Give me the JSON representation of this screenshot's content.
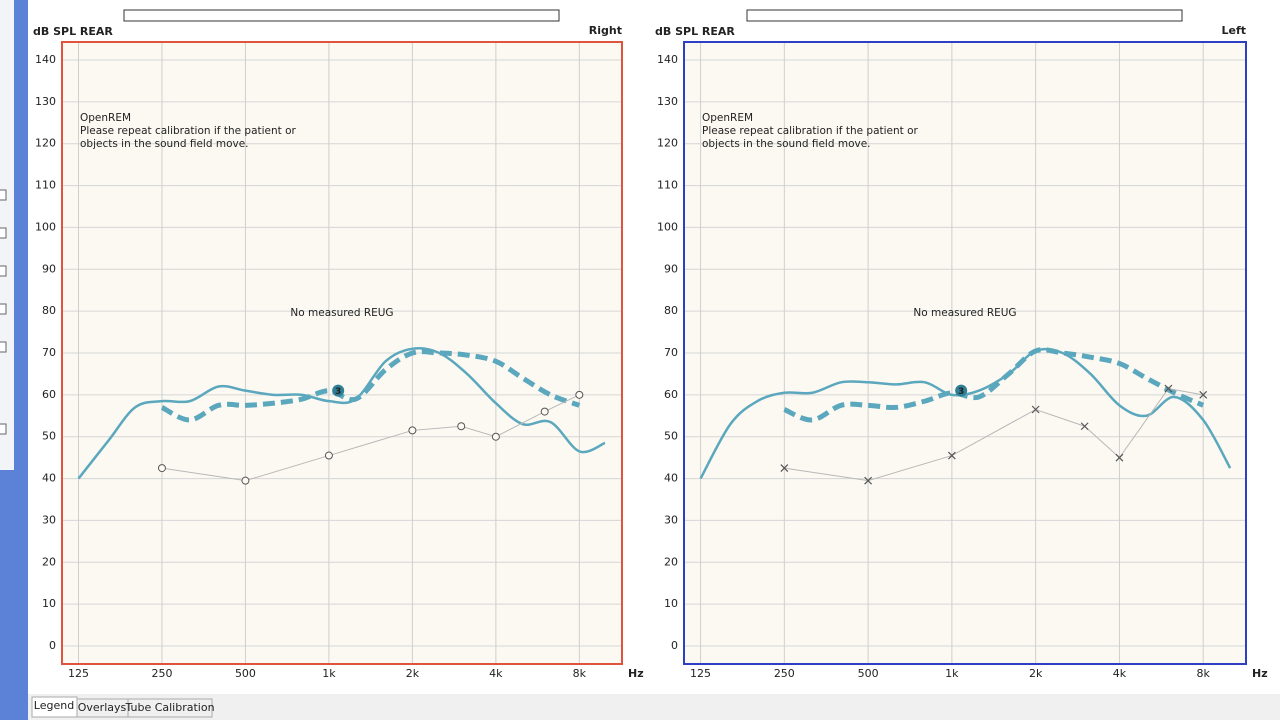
{
  "chart_data": [
    {
      "type": "line",
      "y_label": "dB SPL REAR",
      "side_label": "Right",
      "x_unit": "Hz",
      "frame_color": "#e0533d",
      "log_x": true,
      "grid": true,
      "xlim": [
        109,
        11400
      ],
      "ylim": [
        -4.3,
        144.3
      ],
      "xticks": [
        125,
        250,
        500,
        {
          "value": 1000,
          "label": "1k"
        },
        {
          "value": 2000,
          "label": "2k"
        },
        {
          "value": 4000,
          "label": "4k"
        },
        {
          "value": 8000,
          "label": "8k"
        }
      ],
      "yticks": [
        0,
        10,
        20,
        30,
        40,
        50,
        60,
        70,
        80,
        90,
        100,
        110,
        120,
        130,
        140
      ],
      "notes": [
        "OpenREM",
        "Please repeat calibration if the patient or",
        "objects in the sound field move."
      ],
      "center_note": "No measured REUG",
      "series": [
        {
          "color": "#5ba7bd",
          "style": "solid",
          "x": [
            125,
            160,
            200,
            250,
            315,
            400,
            500,
            630,
            800,
            1000,
            1250,
            1600,
            2000,
            2500,
            3150,
            4000,
            5000,
            6300,
            8000,
            9900
          ],
          "values": [
            40,
            49,
            57,
            58.5,
            58.5,
            62,
            61,
            60,
            60,
            58.5,
            59,
            68,
            71,
            70,
            65,
            58,
            53,
            53.5,
            46.5,
            48.5
          ]
        },
        {
          "color": "#5ba7bd",
          "style": "dashed",
          "x": [
            250,
            315,
            400,
            500,
            630,
            800,
            1000,
            1250,
            1600,
            2000,
            2500,
            3150,
            4000,
            5000,
            6300,
            8000
          ],
          "values": [
            57,
            54,
            57.5,
            57.5,
            58,
            59,
            61,
            59,
            66,
            70,
            70,
            69.5,
            68,
            64,
            60,
            57.5
          ]
        },
        {
          "color": "#b8b8b8",
          "style": "thin",
          "marker": "circle",
          "x": [
            250,
            500,
            1000,
            2000,
            3000,
            4000,
            6000,
            8000
          ],
          "values": [
            42.5,
            39.5,
            45.5,
            51.5,
            52.5,
            50,
            56,
            60
          ]
        }
      ],
      "annotation": {
        "label": "3",
        "x": 1080,
        "y": 61
      }
    },
    {
      "type": "line",
      "y_label": "dB SPL REAR",
      "side_label": "Left",
      "x_unit": "Hz",
      "frame_color": "#2f3fc4",
      "log_x": true,
      "grid": true,
      "xlim": [
        109,
        11400
      ],
      "ylim": [
        -4.3,
        144.3
      ],
      "xticks": [
        125,
        250,
        500,
        {
          "value": 1000,
          "label": "1k"
        },
        {
          "value": 2000,
          "label": "2k"
        },
        {
          "value": 4000,
          "label": "4k"
        },
        {
          "value": 8000,
          "label": "8k"
        }
      ],
      "yticks": [
        0,
        10,
        20,
        30,
        40,
        50,
        60,
        70,
        80,
        90,
        100,
        110,
        120,
        130,
        140
      ],
      "notes": [
        "OpenREM",
        "Please repeat calibration if the patient or",
        "objects in the sound field move."
      ],
      "center_note": "No measured REUG",
      "series": [
        {
          "color": "#5ba7bd",
          "style": "solid",
          "x": [
            125,
            160,
            200,
            250,
            315,
            400,
            500,
            630,
            800,
            1000,
            1250,
            1600,
            2000,
            2500,
            3150,
            4000,
            5000,
            6300,
            8000,
            10000
          ],
          "values": [
            40,
            53,
            58.5,
            60.5,
            60.5,
            63,
            63,
            62.5,
            63,
            60,
            61,
            65,
            70.5,
            70,
            65,
            57.5,
            55,
            59.5,
            54,
            42.5
          ]
        },
        {
          "color": "#5ba7bd",
          "style": "dashed",
          "x": [
            250,
            315,
            400,
            500,
            630,
            800,
            1000,
            1250,
            1600,
            2000,
            2500,
            3150,
            4000,
            5000,
            6300,
            8000
          ],
          "values": [
            56.5,
            54,
            57.5,
            57.5,
            57,
            58.5,
            60.5,
            59.5,
            65,
            70.5,
            70,
            69,
            67.5,
            64,
            60.5,
            57.5
          ]
        },
        {
          "color": "#b8b8b8",
          "style": "thin",
          "marker": "x",
          "x": [
            250,
            500,
            1000,
            2000,
            3000,
            4000,
            6000,
            8000
          ],
          "values": [
            42.5,
            39.5,
            45.5,
            56.5,
            52.5,
            45,
            61.5,
            60
          ]
        }
      ],
      "annotation": {
        "label": "3",
        "x": 1080,
        "y": 61
      }
    }
  ],
  "tabs": [
    "Legend",
    "Overlays",
    "Tube Calibration"
  ]
}
